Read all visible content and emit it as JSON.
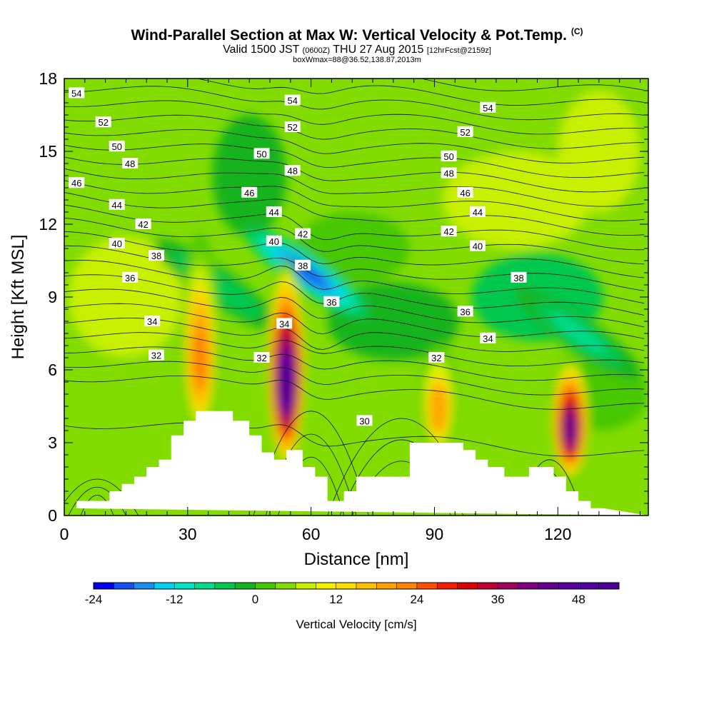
{
  "title": {
    "main": "Wind-Parallel Section at Max W: Vertical Velocity & Pot.Temp.",
    "copyright": "(C)",
    "valid_prefix": "Valid 1500 JST",
    "valid_utc": "(0600Z)",
    "valid_date": "THU 27 Aug 2015",
    "forecast": "[12hrFcst@2159z]",
    "box_info": "boxWmax=88@36.52,138.87,2013m"
  },
  "chart_data": {
    "type": "heatmap",
    "xlabel": "Distance [nm]",
    "ylabel": "Height [Kft MSL]",
    "xlim": [
      0,
      142
    ],
    "ylim": [
      0,
      18
    ],
    "x_ticks": [
      0,
      30,
      60,
      90,
      120
    ],
    "y_ticks": [
      0,
      3,
      6,
      9,
      12,
      15,
      18
    ],
    "colorbar": {
      "label": "Vertical Velocity [cm/s]",
      "min": -24,
      "max": 54,
      "step": 3,
      "tick_labels": [
        "-24",
        "-12",
        "0",
        "12",
        "24",
        "36",
        "48"
      ],
      "colors": [
        "#0000f0",
        "#1450f0",
        "#1e8cf0",
        "#00d2f0",
        "#00e6c3",
        "#00dc8c",
        "#00c850",
        "#14b41e",
        "#46c800",
        "#82dc00",
        "#c8f000",
        "#f0f000",
        "#fadc00",
        "#ffbe00",
        "#ffa000",
        "#ff8200",
        "#ff5000",
        "#f51e00",
        "#dc0000",
        "#be0032",
        "#a0005a",
        "#7d0082",
        "#64008c",
        "#5a00a0",
        "#5000a0",
        "#4b0096"
      ]
    },
    "updraft_cores": [
      {
        "x": 33,
        "z_bottom": 3.5,
        "z_top": 11,
        "max_w": 24
      },
      {
        "x": 54,
        "z_bottom": 2.5,
        "z_top": 10,
        "max_w": 54
      },
      {
        "x": 91,
        "z_bottom": 3,
        "z_top": 6.5,
        "max_w": 20
      },
      {
        "x": 123,
        "z_bottom": 2,
        "z_top": 6,
        "max_w": 44
      }
    ],
    "downdraft_cores": [
      {
        "x": 59,
        "z": 10,
        "min_w": -20
      },
      {
        "x": 37,
        "z": 9.5,
        "min_w": -6
      },
      {
        "x": 125,
        "z": 7.5,
        "min_w": -8
      }
    ],
    "terrain": {
      "x": [
        0,
        3,
        3,
        11,
        11,
        14,
        14,
        17,
        17,
        20,
        20,
        23,
        23,
        26,
        26,
        29,
        29,
        32,
        32,
        41,
        41,
        45,
        45,
        48,
        48,
        51,
        51,
        54,
        54,
        58,
        58,
        61,
        61,
        64,
        64,
        68,
        68,
        71,
        71,
        84,
        84,
        97,
        97,
        100,
        100,
        103,
        103,
        107,
        107,
        113,
        113,
        119,
        119,
        122,
        122,
        125,
        125,
        128,
        128,
        131,
        131,
        142,
        142,
        0
      ],
      "z": [
        0.3,
        0.3,
        0.6,
        0.6,
        1.0,
        1.0,
        1.3,
        1.3,
        1.6,
        1.6,
        2.0,
        2.0,
        2.3,
        2.3,
        3.3,
        3.3,
        3.9,
        3.9,
        4.3,
        4.3,
        3.9,
        3.9,
        3.3,
        3.3,
        2.6,
        2.6,
        2.3,
        2.3,
        2.7,
        2.7,
        2.0,
        2.0,
        1.6,
        1.6,
        0.6,
        0.6,
        1.0,
        1.0,
        1.6,
        1.6,
        3.0,
        3.0,
        2.7,
        2.7,
        2.3,
        2.3,
        2.0,
        2.0,
        1.6,
        1.6,
        2.0,
        2.0,
        1.6,
        1.6,
        1.0,
        1.0,
        0.6,
        0.6,
        0.3,
        0.3,
        0.3,
        0.0,
        0.0
      ]
    },
    "isentropes": {
      "label": "Potential Temperature",
      "levels": [
        30,
        32,
        34,
        36,
        38,
        40,
        42,
        44,
        46,
        48,
        50,
        52,
        54
      ],
      "contour_labels": [
        {
          "text": "54",
          "x": 3,
          "z": 17.4
        },
        {
          "text": "52",
          "x": 9.5,
          "z": 16.2
        },
        {
          "text": "50",
          "x": 12.8,
          "z": 15.2
        },
        {
          "text": "48",
          "x": 16,
          "z": 14.5
        },
        {
          "text": "46",
          "x": 3,
          "z": 13.7
        },
        {
          "text": "44",
          "x": 12.8,
          "z": 12.8
        },
        {
          "text": "42",
          "x": 19.2,
          "z": 12.0
        },
        {
          "text": "40",
          "x": 12.8,
          "z": 11.2
        },
        {
          "text": "38",
          "x": 22.4,
          "z": 10.7
        },
        {
          "text": "36",
          "x": 16,
          "z": 9.8
        },
        {
          "text": "34",
          "x": 21.4,
          "z": 8.0
        },
        {
          "text": "32",
          "x": 22.4,
          "z": 6.6
        },
        {
          "text": "54",
          "x": 55.5,
          "z": 17.1
        },
        {
          "text": "52",
          "x": 55.5,
          "z": 16.0
        },
        {
          "text": "50",
          "x": 48,
          "z": 14.9
        },
        {
          "text": "48",
          "x": 55.5,
          "z": 14.2
        },
        {
          "text": "46",
          "x": 45,
          "z": 13.3
        },
        {
          "text": "44",
          "x": 51,
          "z": 12.5
        },
        {
          "text": "42",
          "x": 58,
          "z": 11.6
        },
        {
          "text": "40",
          "x": 51,
          "z": 11.3
        },
        {
          "text": "38",
          "x": 58,
          "z": 10.3
        },
        {
          "text": "36",
          "x": 65,
          "z": 8.8
        },
        {
          "text": "34",
          "x": 53.5,
          "z": 7.9
        },
        {
          "text": "32",
          "x": 48,
          "z": 6.5
        },
        {
          "text": "54",
          "x": 103,
          "z": 16.8
        },
        {
          "text": "52",
          "x": 97.5,
          "z": 15.8
        },
        {
          "text": "50",
          "x": 93.5,
          "z": 14.8
        },
        {
          "text": "48",
          "x": 93.5,
          "z": 14.1
        },
        {
          "text": "46",
          "x": 97.5,
          "z": 13.3
        },
        {
          "text": "44",
          "x": 100.5,
          "z": 12.5
        },
        {
          "text": "42",
          "x": 93.5,
          "z": 11.7
        },
        {
          "text": "40",
          "x": 100.5,
          "z": 11.1
        },
        {
          "text": "38",
          "x": 110.5,
          "z": 9.8
        },
        {
          "text": "36",
          "x": 97.5,
          "z": 8.4
        },
        {
          "text": "34",
          "x": 103,
          "z": 7.3
        },
        {
          "text": "32",
          "x": 90.5,
          "z": 6.5
        },
        {
          "text": "30",
          "x": 73,
          "z": 3.9
        }
      ]
    }
  }
}
